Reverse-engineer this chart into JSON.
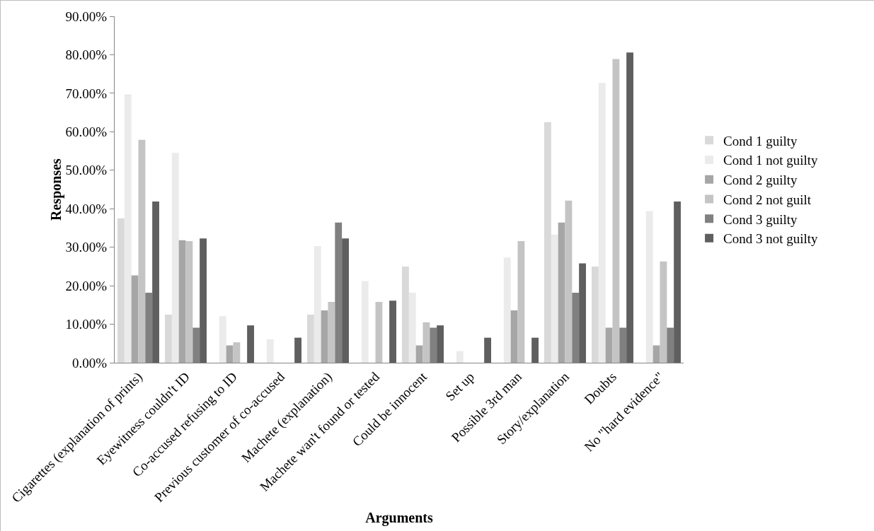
{
  "chart_data": {
    "type": "bar",
    "xlabel": "Arguments",
    "ylabel": "Responses",
    "categories": [
      "Cigarettes (explanation of prints)",
      "Eyewitness couldn't ID",
      "Co-accused refusing to ID",
      "Previous customer of co-accused",
      "Machete (explanation)",
      "Machete wan't found or tested",
      "Could be innocent",
      "Set up",
      "Possible 3rd man",
      "Story/explanation",
      "Doubts",
      "No \"hard evidence\""
    ],
    "series": [
      {
        "name": "Cond 1 guilty",
        "color": "#d9d9d9",
        "values": [
          37.5,
          12.5,
          0,
          0,
          12.5,
          0,
          25,
          0,
          0,
          62.5,
          25,
          0
        ]
      },
      {
        "name": "Cond 1 not guilty",
        "color": "#ebebeb",
        "values": [
          69.7,
          54.5,
          12.1,
          6.1,
          30.3,
          21.2,
          18.2,
          3.0,
          27.3,
          33.3,
          72.7,
          39.4
        ]
      },
      {
        "name": "Cond 2 guilty",
        "color": "#a6a6a6",
        "values": [
          22.7,
          31.8,
          4.5,
          0,
          13.6,
          0,
          4.5,
          0,
          13.6,
          36.4,
          9.1,
          4.5
        ]
      },
      {
        "name": "Cond 2 not guilt",
        "color": "#c4c4c4",
        "values": [
          57.9,
          31.6,
          5.3,
          0,
          15.8,
          15.8,
          10.5,
          0,
          31.6,
          42.1,
          78.9,
          26.3
        ]
      },
      {
        "name": "Cond 3 guilty",
        "color": "#808080",
        "values": [
          18.2,
          9.1,
          0,
          0,
          36.4,
          0,
          9.1,
          0,
          0,
          18.2,
          9.1,
          9.1
        ]
      },
      {
        "name": "Cond 3 not guilty",
        "color": "#5f5f5f",
        "values": [
          41.9,
          32.3,
          9.7,
          6.5,
          32.3,
          16.1,
          9.7,
          6.5,
          6.5,
          25.8,
          80.6,
          41.9
        ]
      }
    ],
    "ylim": [
      0,
      90
    ],
    "yticks": [
      {
        "value": 0,
        "label": "0.00%"
      },
      {
        "value": 10,
        "label": "10.00%"
      },
      {
        "value": 20,
        "label": "20.00%"
      },
      {
        "value": 30,
        "label": "30.00%"
      },
      {
        "value": 40,
        "label": "40.00%"
      },
      {
        "value": 50,
        "label": "50.00%"
      },
      {
        "value": 60,
        "label": "60.00%"
      },
      {
        "value": 70,
        "label": "70.00%"
      },
      {
        "value": 80,
        "label": "80.00%"
      },
      {
        "value": 90,
        "label": "90.00%"
      }
    ],
    "grid": false,
    "legend": "right"
  }
}
